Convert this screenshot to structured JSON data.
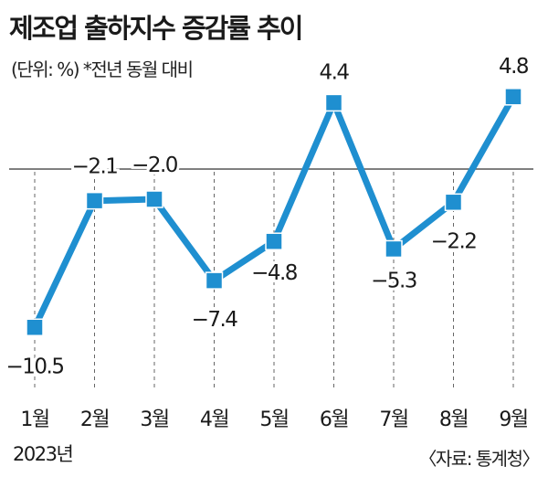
{
  "title": "제조업 출하지수 증감률 추이",
  "subtitle": "(단위: %) *전년 동월 대비",
  "source": "〈자료: 통계청〉",
  "colors": {
    "line": "#1f8fd0",
    "marker": "#1f8fd0",
    "zero_line": "#555555",
    "guide": "#666666"
  },
  "chart_data": {
    "type": "line",
    "categories": [
      "1월",
      "2월",
      "3월",
      "4월",
      "5월",
      "6월",
      "7월",
      "8월",
      "9월"
    ],
    "year_label": "2023년",
    "series": [
      {
        "values": [
          -10.5,
          -2.1,
          -2.0,
          -7.4,
          -4.8,
          4.4,
          -5.3,
          -2.2,
          4.8
        ]
      }
    ],
    "value_labels": [
      "−10.5",
      "−2.1",
      "−2.0",
      "−7.4",
      "−4.8",
      "4.4",
      "−5.3",
      "−2.2",
      "4.8"
    ],
    "ylim": [
      -12,
      6
    ],
    "zero_line": true,
    "grid": false
  }
}
